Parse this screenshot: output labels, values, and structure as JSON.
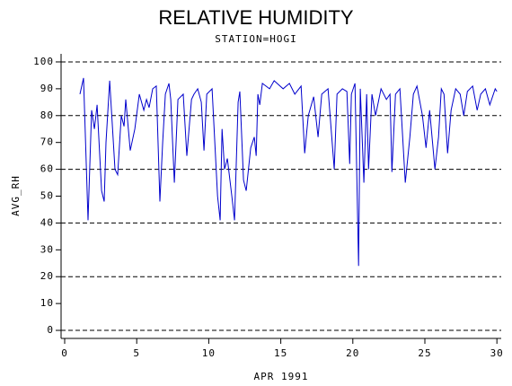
{
  "chart_data": {
    "type": "line",
    "title": "RELATIVE HUMIDITY",
    "subtitle": "STATION=HOGI",
    "x_label": "APR 1991",
    "y_label": "AVG_RH",
    "x": [
      1.06,
      1.31,
      1.62,
      1.87,
      2.06,
      2.25,
      2.56,
      2.74,
      2.87,
      3.12,
      3.49,
      3.68,
      3.93,
      4.12,
      4.24,
      4.55,
      4.87,
      5.18,
      5.49,
      5.68,
      5.86,
      6.11,
      6.36,
      6.61,
      6.8,
      6.99,
      7.24,
      7.36,
      7.61,
      7.86,
      8.23,
      8.48,
      8.8,
      8.98,
      9.23,
      9.48,
      9.67,
      9.86,
      10.23,
      10.61,
      10.79,
      10.92,
      11.1,
      11.29,
      11.6,
      11.79,
      12.04,
      12.16,
      12.41,
      12.6,
      12.91,
      13.16,
      13.29,
      13.41,
      13.54,
      13.72,
      14.22,
      14.54,
      15.16,
      15.6,
      15.97,
      16.41,
      16.66,
      16.91,
      17.28,
      17.59,
      17.84,
      18.28,
      18.71,
      18.9,
      19.28,
      19.59,
      19.78,
      19.9,
      20.15,
      20.4,
      20.52,
      20.77,
      20.96,
      21.09,
      21.33,
      21.58,
      21.96,
      22.33,
      22.58,
      22.71,
      22.96,
      23.27,
      23.64,
      23.96,
      24.2,
      24.45,
      24.83,
      25.08,
      25.33,
      25.7,
      25.95,
      26.14,
      26.33,
      26.58,
      26.82,
      27.14,
      27.45,
      27.7,
      27.95,
      28.32,
      28.63,
      28.88,
      29.2,
      29.51,
      29.88,
      30.0
    ],
    "series": [
      {
        "color": "#0000cc",
        "values": [
          88,
          94,
          41,
          82,
          75,
          84,
          52,
          48,
          70,
          93,
          60,
          58,
          80,
          76,
          86,
          67,
          75,
          88,
          82,
          86,
          83,
          90,
          91,
          48,
          70,
          88,
          92,
          86,
          55,
          86,
          88,
          65,
          86,
          88,
          90,
          85,
          67,
          88,
          90,
          50,
          41,
          75,
          60,
          64,
          50,
          41,
          85,
          89,
          56,
          52,
          68,
          72,
          65,
          88,
          84,
          92,
          90,
          93,
          90,
          92,
          88,
          91,
          66,
          80,
          87,
          72,
          88,
          90,
          60,
          88,
          90,
          89,
          62,
          88,
          92,
          24,
          90,
          55,
          88,
          60,
          88,
          80,
          90,
          86,
          88,
          59,
          88,
          90,
          55,
          72,
          88,
          91,
          80,
          68,
          82,
          60,
          72,
          90,
          88,
          66,
          82,
          90,
          88,
          80,
          89,
          91,
          82,
          88,
          90,
          84,
          90,
          89
        ]
      }
    ],
    "xlim": [
      -0.25,
      30.3
    ],
    "ylim": [
      -3,
      103
    ],
    "xticks": [
      0,
      5,
      10,
      15,
      20,
      25,
      30
    ],
    "yticks": [
      0,
      10,
      20,
      30,
      40,
      50,
      60,
      70,
      80,
      90,
      100
    ],
    "ygrid": [
      0,
      20,
      40,
      60,
      80,
      100
    ]
  }
}
